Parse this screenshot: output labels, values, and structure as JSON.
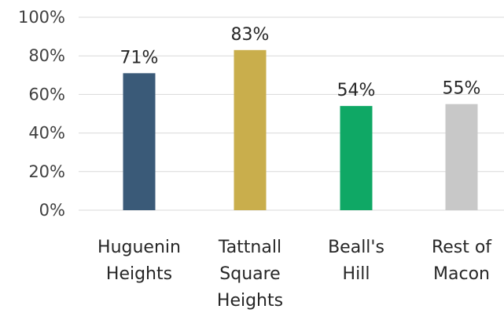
{
  "chart_data": {
    "type": "bar",
    "categories": [
      [
        "Huguenin",
        "Heights"
      ],
      [
        "Tattnall",
        "Square",
        "Heights"
      ],
      [
        "Beall's",
        "Hill"
      ],
      [
        "Rest of",
        "Macon"
      ]
    ],
    "values": [
      71,
      83,
      54,
      55
    ],
    "data_labels": [
      "71%",
      "83%",
      "54%",
      "55%"
    ],
    "colors": [
      "#3a5a78",
      "#c9ae4c",
      "#0fa865",
      "#c8c8c8"
    ],
    "title": "",
    "xlabel": "",
    "ylabel": "",
    "ylim": [
      0,
      100
    ],
    "yticks": [
      0,
      20,
      40,
      60,
      80,
      100
    ],
    "ytick_labels": [
      "0%",
      "20%",
      "40%",
      "60%",
      "80%",
      "100%"
    ],
    "grid": true,
    "legend": "none"
  }
}
